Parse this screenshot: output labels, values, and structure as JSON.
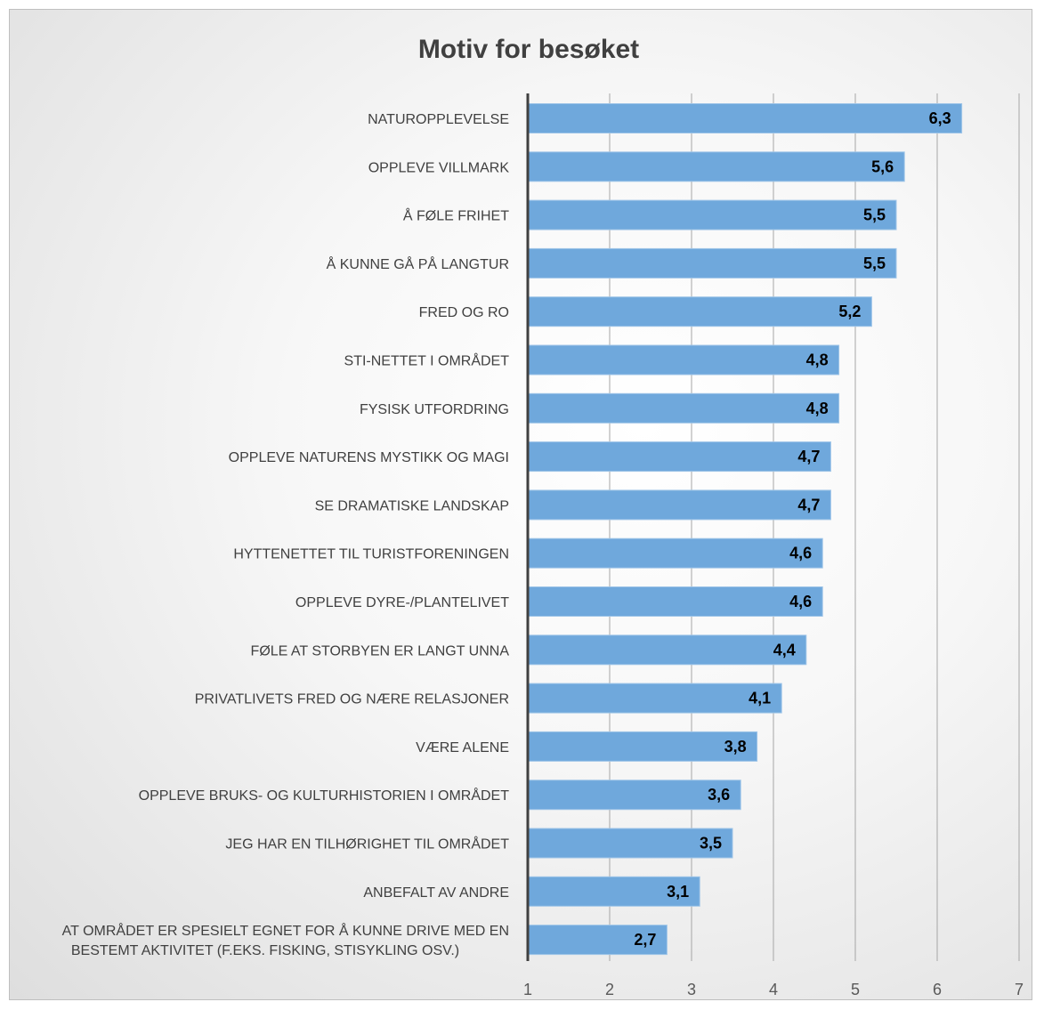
{
  "chart_data": {
    "type": "bar",
    "orientation": "horizontal",
    "title": "Motiv for besøket",
    "xlabel": "",
    "ylabel": "",
    "xlim": [
      1,
      7
    ],
    "x_ticks": [
      1,
      2,
      3,
      4,
      5,
      6,
      7
    ],
    "x_tick_labels": [
      "1",
      "2",
      "3",
      "4",
      "5",
      "6",
      "7"
    ],
    "grid": "vertical",
    "legend": "none",
    "bar_color": "#6fa8dc",
    "categories": [
      "NATUROPPLEVELSE",
      "OPPLEVE VILLMARK",
      "Å FØLE FRIHET",
      "Å KUNNE GÅ PÅ LANGTUR",
      "FRED OG RO",
      "STI-NETTET I OMRÅDET",
      "FYSISK UTFORDRING",
      "OPPLEVE NATURENS MYSTIKK OG MAGI",
      "SE DRAMATISKE LANDSKAP",
      "HYTTENETTET TIL TURISTFORENINGEN",
      "OPPLEVE DYRE-/PLANTELIVET",
      "FØLE AT STORBYEN ER LANGT UNNA",
      "PRIVATLIVETS FRED OG NÆRE RELASJONER",
      "VÆRE ALENE",
      "OPPLEVE BRUKS- OG KULTURHISTORIEN I OMRÅDET",
      "JEG HAR EN TILHØRIGHET TIL OMRÅDET",
      "ANBEFALT AV ANDRE",
      "AT OMRÅDET ER SPESIELT EGNET FOR Å KUNNE DRIVE MED EN BESTEMT AKTIVITET (F.EKS. FISKING, STISYKLING OSV.)"
    ],
    "category_lines": [
      [
        "NATUROPPLEVELSE"
      ],
      [
        "OPPLEVE VILLMARK"
      ],
      [
        "Å FØLE FRIHET"
      ],
      [
        "Å KUNNE GÅ PÅ LANGTUR"
      ],
      [
        "FRED OG RO"
      ],
      [
        "STI-NETTET I OMRÅDET"
      ],
      [
        "FYSISK UTFORDRING"
      ],
      [
        "OPPLEVE NATURENS MYSTIKK OG MAGI"
      ],
      [
        "SE DRAMATISKE LANDSKAP"
      ],
      [
        "HYTTENETTET TIL TURISTFORENINGEN"
      ],
      [
        "OPPLEVE DYRE-/PLANTELIVET"
      ],
      [
        "FØLE AT STORBYEN ER LANGT UNNA"
      ],
      [
        "PRIVATLIVETS FRED OG NÆRE RELASJONER"
      ],
      [
        "VÆRE ALENE"
      ],
      [
        "OPPLEVE BRUKS- OG KULTURHISTORIEN I OMRÅDET"
      ],
      [
        "JEG HAR EN TILHØRIGHET TIL OMRÅDET"
      ],
      [
        "ANBEFALT AV ANDRE"
      ],
      [
        "AT OMRÅDET ER SPESIELT EGNET FOR Å KUNNE DRIVE MED EN",
        "BESTEMT AKTIVITET (F.EKS. FISKING, STISYKLING OSV.)"
      ]
    ],
    "values": [
      6.3,
      5.6,
      5.5,
      5.5,
      5.2,
      4.8,
      4.8,
      4.7,
      4.7,
      4.6,
      4.6,
      4.4,
      4.1,
      3.8,
      3.6,
      3.5,
      3.1,
      2.7
    ],
    "value_labels": [
      "6,3",
      "5,6",
      "5,5",
      "5,5",
      "5,2",
      "4,8",
      "4,8",
      "4,7",
      "4,7",
      "4,6",
      "4,6",
      "4,4",
      "4,1",
      "3,8",
      "3,6",
      "3,5",
      "3,1",
      "2,7"
    ]
  }
}
